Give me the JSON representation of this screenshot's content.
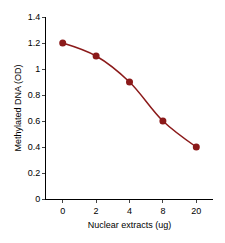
{
  "chart_data": {
    "type": "line",
    "x_label": "Nuclear extracts (ug)",
    "y_label": "Methylated DNA (OD)",
    "categories": [
      "0",
      "2",
      "4",
      "8",
      "20"
    ],
    "values": [
      1.2,
      1.1,
      0.9,
      0.6,
      0.4
    ],
    "color": "#8b1a1a",
    "marker": "circle",
    "line_style": "solid",
    "ylim": [
      0,
      1.4
    ],
    "yticks": [
      0,
      0.2,
      0.4,
      0.6,
      0.8,
      1,
      1.2,
      1.4
    ],
    "grid": false
  }
}
